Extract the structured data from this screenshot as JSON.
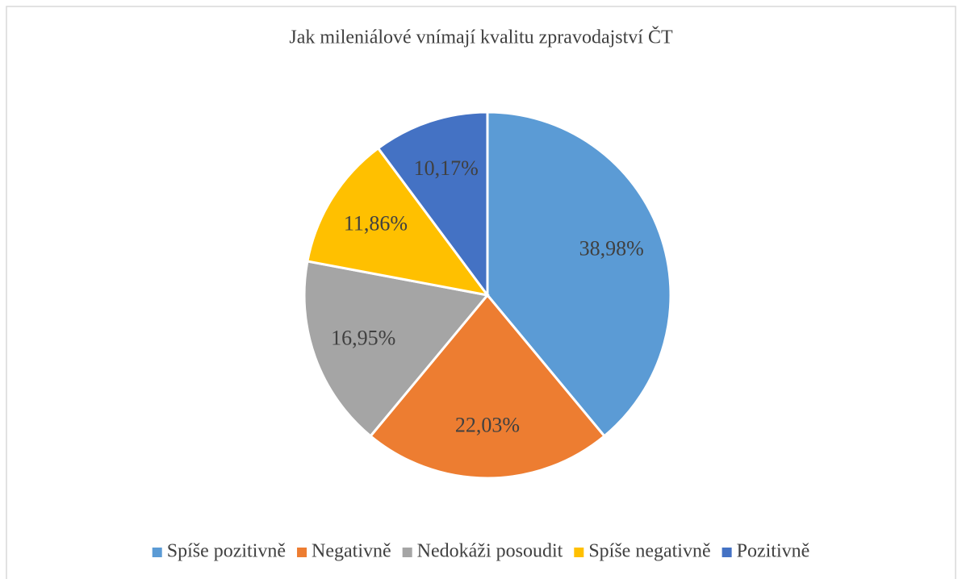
{
  "chart_data": {
    "type": "pie",
    "title": "Jak mileniálové vnímají kvalitu zpravodajství ČT",
    "categories": [
      "Spíše pozitivně",
      "Negativně",
      "Nedokáži posoudit",
      "Spíše negativně",
      "Pozitivně"
    ],
    "values": [
      38.98,
      22.03,
      16.95,
      11.86,
      10.17
    ],
    "value_labels": [
      "38,98%",
      "22,03%",
      "16,95%",
      "11,86%",
      "10,17%"
    ],
    "colors": [
      "#5b9bd5",
      "#ed7d31",
      "#a5a5a5",
      "#ffc000",
      "#4472c4"
    ],
    "legend": "bottom"
  }
}
